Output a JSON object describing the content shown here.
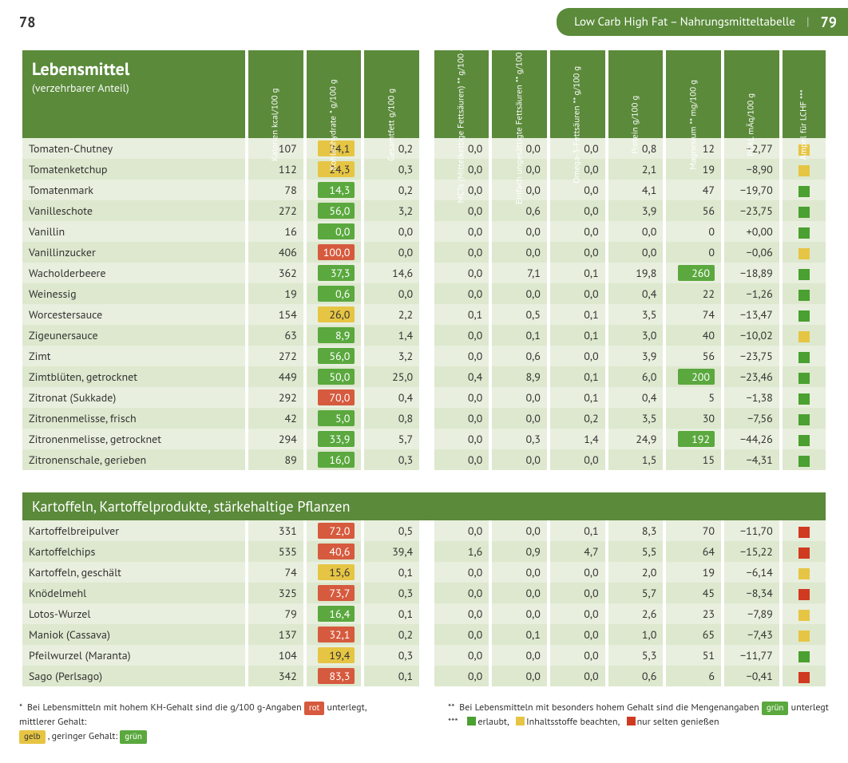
{
  "page_left": "78",
  "header_pill": {
    "title": "Low Carb High Fat – Nahrungsmitteltabelle",
    "page_right": "79"
  },
  "table_header": {
    "title": "Lebensmittel",
    "subtitle": "(verzehrbarer Anteil)",
    "cols": [
      "Kalorien kcal/100 g",
      "Kohlenhydrate * g/100 g",
      "Gesamtfett g/100 g",
      "",
      "MCTs (Mittelket­tige Fettsäuren) ** g/100 g",
      "Einfach ungesättigte Fettsäuren ** g/100 g",
      "Omega-3-Fettsäuren ** g/100 g",
      "Protein g/100 g",
      "Magnesium ** mg/100 g",
      "PRAL mÄq/100 g",
      "Ampel für LCHF ***"
    ]
  },
  "colors": {
    "header_bg": "#5a8a3a",
    "row_light": "#e8efde",
    "row_stripe": "#dde8ce",
    "hl_green": "#5aa83e",
    "hl_yellow": "#e6c544",
    "hl_red": "#d65a3e",
    "sq_green": "#4aa030",
    "sq_yellow": "#e6c544",
    "sq_red": "#d03a20"
  },
  "column_highlight_rules": {
    "comment": "kh uses green/yellow/red chip per value; mg uses green chip when notably high",
    "kh": "carb_level",
    "mg": "high_mineral"
  },
  "sections": [
    {
      "title": null,
      "rows": [
        {
          "name": "Tomaten-Chutney",
          "kcal": "107",
          "kh": "24,1",
          "kh_hl": "yellow",
          "fett": "0,2",
          "mct": "0,0",
          "mufa": "0,0",
          "o3": "0,0",
          "prot": "0,8",
          "mg": "12",
          "mg_hl": null,
          "pral": "−2,77",
          "ampel": "yellow"
        },
        {
          "name": "Tomatenketchup",
          "kcal": "112",
          "kh": "24,3",
          "kh_hl": "yellow",
          "fett": "0,3",
          "mct": "0,0",
          "mufa": "0,0",
          "o3": "0,0",
          "prot": "2,1",
          "mg": "19",
          "mg_hl": null,
          "pral": "−8,90",
          "ampel": "yellow"
        },
        {
          "name": "Tomatenmark",
          "kcal": "78",
          "kh": "14,3",
          "kh_hl": "green",
          "fett": "0,2",
          "mct": "0,0",
          "mufa": "0,0",
          "o3": "0,0",
          "prot": "4,1",
          "mg": "47",
          "mg_hl": null,
          "pral": "−19,70",
          "ampel": "green"
        },
        {
          "name": "Vanilleschote",
          "kcal": "272",
          "kh": "56,0",
          "kh_hl": "green",
          "fett": "3,2",
          "mct": "0,0",
          "mufa": "0,6",
          "o3": "0,0",
          "prot": "3,9",
          "mg": "56",
          "mg_hl": null,
          "pral": "−23,75",
          "ampel": "green"
        },
        {
          "name": "Vanillin",
          "kcal": "16",
          "kh": "0,0",
          "kh_hl": "green",
          "fett": "0,0",
          "mct": "0,0",
          "mufa": "0,0",
          "o3": "0,0",
          "prot": "0,0",
          "mg": "0",
          "mg_hl": null,
          "pral": "+0,00",
          "ampel": "green"
        },
        {
          "name": "Vanillinzucker",
          "kcal": "406",
          "kh": "100,0",
          "kh_hl": "red",
          "fett": "0,0",
          "mct": "0,0",
          "mufa": "0,0",
          "o3": "0,0",
          "prot": "0,0",
          "mg": "0",
          "mg_hl": null,
          "pral": "−0,06",
          "ampel": "yellow"
        },
        {
          "name": "Wacholderbeere",
          "kcal": "362",
          "kh": "37,3",
          "kh_hl": "green",
          "fett": "14,6",
          "mct": "0,0",
          "mufa": "7,1",
          "o3": "0,1",
          "prot": "19,8",
          "mg": "260",
          "mg_hl": "green",
          "pral": "−18,89",
          "ampel": "green"
        },
        {
          "name": "Weinessig",
          "kcal": "19",
          "kh": "0,6",
          "kh_hl": "green",
          "fett": "0,0",
          "mct": "0,0",
          "mufa": "0,0",
          "o3": "0,0",
          "prot": "0,4",
          "mg": "22",
          "mg_hl": null,
          "pral": "−1,26",
          "ampel": "green"
        },
        {
          "name": "Worcestersauce",
          "kcal": "154",
          "kh": "26,0",
          "kh_hl": "yellow",
          "fett": "2,2",
          "mct": "0,1",
          "mufa": "0,5",
          "o3": "0,1",
          "prot": "3,5",
          "mg": "74",
          "mg_hl": null,
          "pral": "−13,47",
          "ampel": "green"
        },
        {
          "name": "Zigeunersauce",
          "kcal": "63",
          "kh": "8,9",
          "kh_hl": "green",
          "fett": "1,4",
          "mct": "0,0",
          "mufa": "0,1",
          "o3": "0,1",
          "prot": "3,0",
          "mg": "40",
          "mg_hl": null,
          "pral": "−10,02",
          "ampel": "yellow"
        },
        {
          "name": "Zimt",
          "kcal": "272",
          "kh": "56,0",
          "kh_hl": "green",
          "fett": "3,2",
          "mct": "0,0",
          "mufa": "0,6",
          "o3": "0,0",
          "prot": "3,9",
          "mg": "56",
          "mg_hl": null,
          "pral": "−23,75",
          "ampel": "green"
        },
        {
          "name": "Zimtblüten, getrocknet",
          "kcal": "449",
          "kh": "50,0",
          "kh_hl": "green",
          "fett": "25,0",
          "mct": "0,4",
          "mufa": "8,9",
          "o3": "0,1",
          "prot": "6,0",
          "mg": "200",
          "mg_hl": "green",
          "pral": "−23,46",
          "ampel": "green"
        },
        {
          "name": "Zitronat (Sukkade)",
          "kcal": "292",
          "kh": "70,0",
          "kh_hl": "red",
          "fett": "0,4",
          "mct": "0,0",
          "mufa": "0,0",
          "o3": "0,1",
          "prot": "0,4",
          "mg": "5",
          "mg_hl": null,
          "pral": "−1,38",
          "ampel": "green"
        },
        {
          "name": "Zitronenmelisse, frisch",
          "kcal": "42",
          "kh": "5,0",
          "kh_hl": "green",
          "fett": "0,8",
          "mct": "0,0",
          "mufa": "0,0",
          "o3": "0,2",
          "prot": "3,5",
          "mg": "30",
          "mg_hl": null,
          "pral": "−7,56",
          "ampel": "green"
        },
        {
          "name": "Zitronenmelisse, getrocknet",
          "kcal": "294",
          "kh": "33,9",
          "kh_hl": "green",
          "fett": "5,7",
          "mct": "0,0",
          "mufa": "0,3",
          "o3": "1,4",
          "prot": "24,9",
          "mg": "192",
          "mg_hl": "green",
          "pral": "−44,26",
          "ampel": "green"
        },
        {
          "name": "Zitronenschale, gerieben",
          "kcal": "89",
          "kh": "16,0",
          "kh_hl": "green",
          "fett": "0,3",
          "mct": "0,0",
          "mufa": "0,0",
          "o3": "0,0",
          "prot": "1,5",
          "mg": "15",
          "mg_hl": null,
          "pral": "−4,31",
          "ampel": "green"
        }
      ]
    },
    {
      "title": "Kartoffeln, Kartoffelprodukte, stärkehaltige Pflanzen",
      "rows": [
        {
          "name": "Kartoffelbreipulver",
          "kcal": "331",
          "kh": "72,0",
          "kh_hl": "red",
          "fett": "0,5",
          "mct": "0,0",
          "mufa": "0,0",
          "o3": "0,1",
          "prot": "8,3",
          "mg": "70",
          "mg_hl": null,
          "pral": "−11,70",
          "ampel": "red"
        },
        {
          "name": "Kartoffelchips",
          "kcal": "535",
          "kh": "40,6",
          "kh_hl": "red",
          "fett": "39,4",
          "mct": "1,6",
          "mufa": "0,9",
          "o3": "4,7",
          "prot": "5,5",
          "mg": "64",
          "mg_hl": null,
          "pral": "−15,22",
          "ampel": "red"
        },
        {
          "name": "Kartoffeln, geschält",
          "kcal": "74",
          "kh": "15,6",
          "kh_hl": "yellow",
          "fett": "0,1",
          "mct": "0,0",
          "mufa": "0,0",
          "o3": "0,0",
          "prot": "2,0",
          "mg": "19",
          "mg_hl": null,
          "pral": "−6,14",
          "ampel": "yellow"
        },
        {
          "name": "Knödelmehl",
          "kcal": "325",
          "kh": "73,7",
          "kh_hl": "red",
          "fett": "0,3",
          "mct": "0,0",
          "mufa": "0,0",
          "o3": "0,0",
          "prot": "5,7",
          "mg": "45",
          "mg_hl": null,
          "pral": "−8,34",
          "ampel": "red"
        },
        {
          "name": "Lotos-Wurzel",
          "kcal": "79",
          "kh": "16,4",
          "kh_hl": "green",
          "fett": "0,1",
          "mct": "0,0",
          "mufa": "0,0",
          "o3": "0,0",
          "prot": "2,6",
          "mg": "23",
          "mg_hl": null,
          "pral": "−7,89",
          "ampel": "yellow"
        },
        {
          "name": "Maniok (Cassava)",
          "kcal": "137",
          "kh": "32,1",
          "kh_hl": "red",
          "fett": "0,2",
          "mct": "0,0",
          "mufa": "0,1",
          "o3": "0,0",
          "prot": "1,0",
          "mg": "65",
          "mg_hl": null,
          "pral": "−7,43",
          "ampel": "yellow"
        },
        {
          "name": "Pfeilwurzel (Maranta)",
          "kcal": "104",
          "kh": "19,4",
          "kh_hl": "yellow",
          "fett": "0,3",
          "mct": "0,0",
          "mufa": "0,0",
          "o3": "0,0",
          "prot": "5,3",
          "mg": "51",
          "mg_hl": null,
          "pral": "−11,77",
          "ampel": "green"
        },
        {
          "name": "Sago (Perlsago)",
          "kcal": "342",
          "kh": "83,3",
          "kh_hl": "red",
          "fett": "0,1",
          "mct": "0,0",
          "mufa": "0,0",
          "o3": "0,0",
          "prot": "0,6",
          "mg": "6",
          "mg_hl": null,
          "pral": "−0,41",
          "ampel": "red"
        }
      ]
    }
  ],
  "footnotes": {
    "star1_a": "Bei Lebensmitteln mit hohem KH-Gehalt sind die g/100 g-Angaben",
    "star1_b": "unterlegt, mittlerer Gehalt:",
    "star1_c": ", geringer Gehalt:",
    "chip_rot": "rot",
    "chip_gelb": "gelb",
    "chip_gruen": "grün",
    "star2": "Bei Lebensmitteln mit besonders hohem Gehalt sind die Mengenangaben",
    "star2_b": "unterlegt",
    "star3_a": "erlaubt,",
    "star3_b": "Inhaltsstoffe beachten,",
    "star3_c": "nur selten genießen",
    "mark1": "*",
    "mark2": "**",
    "mark3": "***"
  }
}
